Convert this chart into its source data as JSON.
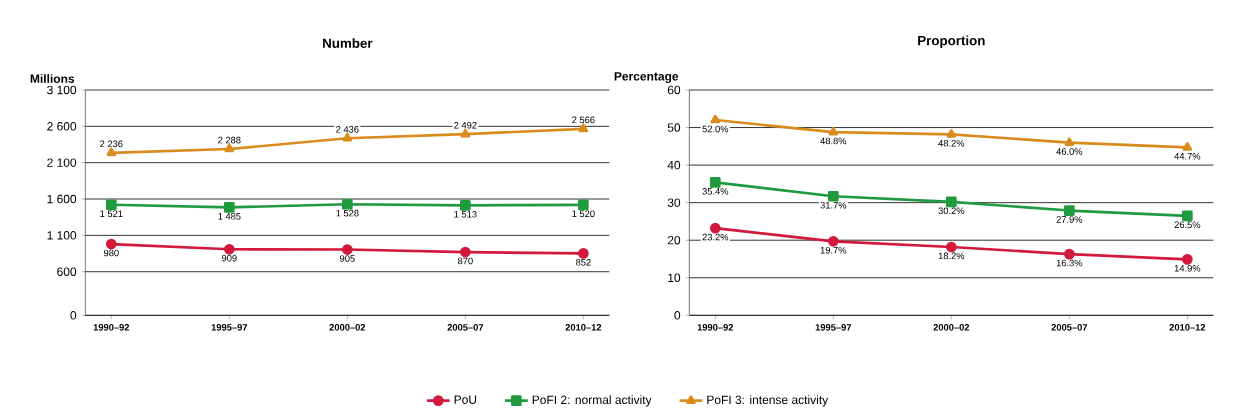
{
  "chart_data": [
    {
      "type": "line",
      "title": "Number",
      "ylabel": "Millions",
      "categories": [
        "1990–92",
        "1995–97",
        "2000–02",
        "2005–07",
        "2010–12"
      ],
      "series": [
        {
          "name": "PoU",
          "color": "#d2183c",
          "marker": "circle",
          "values": [
            980,
            909,
            905,
            870,
            852
          ],
          "value_labels": [
            "980",
            "909",
            "905",
            "870",
            "852"
          ]
        },
        {
          "name": "PoFI 2: normal activity",
          "color": "#1f9a3f",
          "marker": "square",
          "values": [
            1521,
            1485,
            1528,
            1513,
            1520
          ],
          "value_labels": [
            "1 521",
            "1 485",
            "1 528",
            "1 513",
            "1 520"
          ]
        },
        {
          "name": "PoFI 3: intense activity",
          "color": "#d98b1e",
          "marker": "triangle",
          "values": [
            2236,
            2288,
            2436,
            2492,
            2566
          ],
          "value_labels": [
            "2 236",
            "2 288",
            "2 436",
            "2 492",
            "2 566"
          ]
        }
      ],
      "ylim": [
        0,
        3100
      ],
      "yticks": [
        {
          "value": 0,
          "label": "0"
        },
        {
          "value": 600,
          "label": "600"
        },
        {
          "value": 1100,
          "label": "1 100"
        },
        {
          "value": 1600,
          "label": "1 600"
        },
        {
          "value": 2100,
          "label": "2 100"
        },
        {
          "value": 2600,
          "label": "2 600"
        },
        {
          "value": 3100,
          "label": "3 100"
        }
      ],
      "grid": "y",
      "legend": "bottom"
    },
    {
      "type": "line",
      "title": "Proportion",
      "ylabel": "Percentage",
      "categories": [
        "1990–92",
        "1995–97",
        "2000–02",
        "2005–07",
        "2010–12"
      ],
      "series": [
        {
          "color": "#d2183c",
          "marker": "circle",
          "values": [
            23.2,
            19.7,
            18.2,
            16.3,
            14.9
          ],
          "value_labels": [
            "23.2%",
            "19.7%",
            "18.2%",
            "16.3%",
            "14.9%"
          ]
        },
        {
          "color": "#1f9a3f",
          "marker": "square",
          "values": [
            35.4,
            31.7,
            30.2,
            27.9,
            26.5
          ],
          "value_labels": [
            "35.4%",
            "31.7%",
            "30.2%",
            "27.9%",
            "26.5%"
          ]
        },
        {
          "color": "#d98b1e",
          "marker": "triangle",
          "values": [
            52.0,
            48.8,
            48.2,
            46.0,
            44.7
          ],
          "value_labels": [
            "52.0%",
            "48.8%",
            "48.2%",
            "46.0%",
            "44.7%"
          ]
        }
      ],
      "ylim": [
        0,
        60
      ],
      "yticks": [
        0,
        10,
        20,
        30,
        40,
        50,
        60
      ],
      "grid": "y"
    }
  ]
}
